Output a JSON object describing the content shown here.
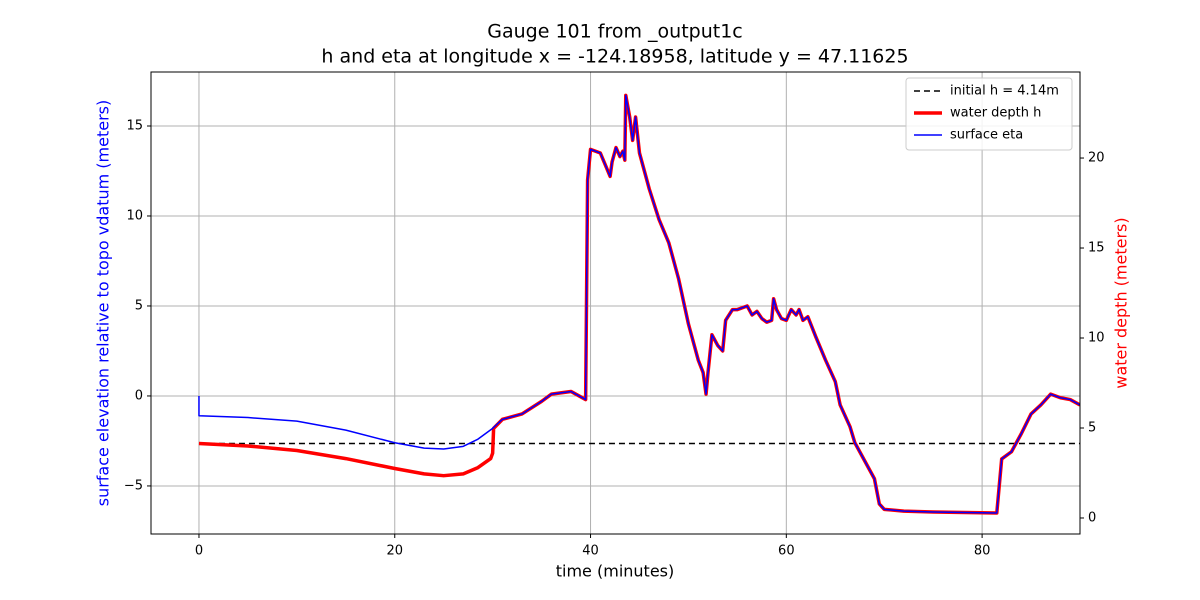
{
  "chart_data": {
    "type": "line",
    "title": "Gauge 101 from _output1c",
    "subtitle": "h and eta at longitude x = -124.18958, latitude y = 47.11625",
    "xlabel": "time (minutes)",
    "ylabel": "surface elevation relative to topo vdatum (meters)",
    "y2label": "water depth (meters)",
    "xlim": [
      -4.9,
      90
    ],
    "xticks": [
      0,
      20,
      40,
      60,
      80
    ],
    "ylim": [
      -7.67,
      18
    ],
    "yticks": [
      {
        "value": -5,
        "label": "−5"
      },
      0,
      5,
      10,
      15
    ],
    "y2lim": [
      -0.89,
      24.78
    ],
    "y2ticks": [
      0,
      5,
      10,
      15,
      20
    ],
    "grid": true,
    "legend": "upper right",
    "series": [
      {
        "name": "initial h = 4.14m",
        "color": "#000000",
        "style": "dashed",
        "axis": "y2",
        "x": [
          0,
          90
        ],
        "values": [
          4.14,
          4.14
        ]
      },
      {
        "name": "water depth h",
        "color": "#ff0000",
        "style": "thick",
        "axis": "y2",
        "x": [
          0,
          5,
          10,
          15,
          20,
          23,
          25,
          27,
          28.5,
          29.8,
          30,
          30.1,
          31,
          33,
          35,
          36,
          38,
          39.5,
          39.7,
          40,
          41,
          42,
          42.2,
          42.6,
          43,
          43.3,
          43.5,
          43.6,
          44,
          44.3,
          44.6,
          45,
          46,
          47,
          48,
          49,
          50,
          51,
          51.5,
          51.8,
          52,
          52.4,
          53,
          53.5,
          53.8,
          54.5,
          55,
          56,
          56.5,
          57,
          57.5,
          58,
          58.5,
          58.7,
          59,
          59.5,
          60,
          60.5,
          61,
          61.3,
          61.7,
          62.2,
          63,
          64,
          65,
          65.5,
          66.5,
          67,
          68,
          69,
          69.5,
          70,
          72,
          75,
          81.5,
          82,
          83,
          84,
          85,
          86,
          87,
          88,
          89,
          90
        ],
        "values": [
          4.14,
          4.0,
          3.75,
          3.3,
          2.75,
          2.45,
          2.35,
          2.45,
          2.8,
          3.3,
          3.6,
          4.98,
          5.48,
          5.78,
          6.48,
          6.88,
          7.03,
          6.58,
          18.78,
          20.48,
          20.28,
          18.98,
          19.78,
          20.58,
          20.08,
          20.38,
          19.88,
          23.48,
          22.28,
          20.98,
          22.28,
          20.28,
          18.28,
          16.58,
          15.28,
          13.28,
          10.78,
          8.78,
          8.08,
          6.88,
          8.08,
          10.18,
          9.58,
          9.28,
          10.98,
          11.58,
          11.58,
          11.78,
          11.28,
          11.48,
          11.08,
          10.88,
          10.98,
          12.18,
          11.58,
          11.08,
          10.98,
          11.58,
          11.28,
          11.58,
          10.98,
          11.18,
          10.08,
          8.78,
          7.58,
          6.28,
          5.08,
          4.18,
          3.18,
          2.18,
          0.78,
          0.48,
          0.38,
          0.33,
          0.28,
          3.28,
          3.68,
          4.68,
          5.78,
          6.28,
          6.88,
          6.68,
          6.58,
          6.28
        ]
      },
      {
        "name": "surface eta",
        "color": "#0000ff",
        "style": "thin",
        "axis": "y",
        "x": [
          0,
          0,
          5,
          10,
          15,
          20,
          23,
          25,
          27,
          28.5,
          30,
          31,
          33,
          35,
          36,
          38,
          39.5,
          39.7,
          40,
          41,
          42,
          42.2,
          42.6,
          43,
          43.3,
          43.5,
          43.6,
          44,
          44.3,
          44.6,
          45,
          46,
          47,
          48,
          49,
          50,
          51,
          51.5,
          51.8,
          52,
          52.4,
          53,
          53.5,
          53.8,
          54.5,
          55,
          56,
          56.5,
          57,
          57.5,
          58,
          58.5,
          58.7,
          59,
          59.5,
          60,
          60.5,
          61,
          61.3,
          61.7,
          62.2,
          63,
          64,
          65,
          65.5,
          66.5,
          67,
          68,
          69,
          69.5,
          70,
          72,
          75,
          81.5,
          82,
          83,
          84,
          85,
          86,
          87,
          88,
          89,
          90
        ],
        "values": [
          0,
          -1.1,
          -1.2,
          -1.4,
          -1.9,
          -2.6,
          -2.9,
          -2.95,
          -2.8,
          -2.4,
          -1.8,
          -1.3,
          -1.0,
          -0.3,
          0.1,
          0.25,
          -0.2,
          12,
          13.7,
          13.5,
          12.2,
          13,
          13.8,
          13.3,
          13.6,
          13.1,
          16.7,
          15.5,
          14.2,
          15.5,
          13.5,
          11.5,
          9.8,
          8.5,
          6.5,
          4,
          2,
          1.3,
          0.1,
          1.3,
          3.4,
          2.8,
          2.5,
          4.2,
          4.8,
          4.8,
          5,
          4.5,
          4.7,
          4.3,
          4.1,
          4.2,
          5.4,
          4.8,
          4.3,
          4.2,
          4.8,
          4.5,
          4.8,
          4.2,
          4.4,
          3.3,
          2,
          0.8,
          -0.5,
          -1.7,
          -2.6,
          -3.6,
          -4.6,
          -6,
          -6.3,
          -6.4,
          -6.45,
          -6.5,
          -3.5,
          -3.1,
          -2.1,
          -1,
          -0.5,
          0.1,
          -0.1,
          -0.2,
          -0.5
        ]
      }
    ]
  }
}
